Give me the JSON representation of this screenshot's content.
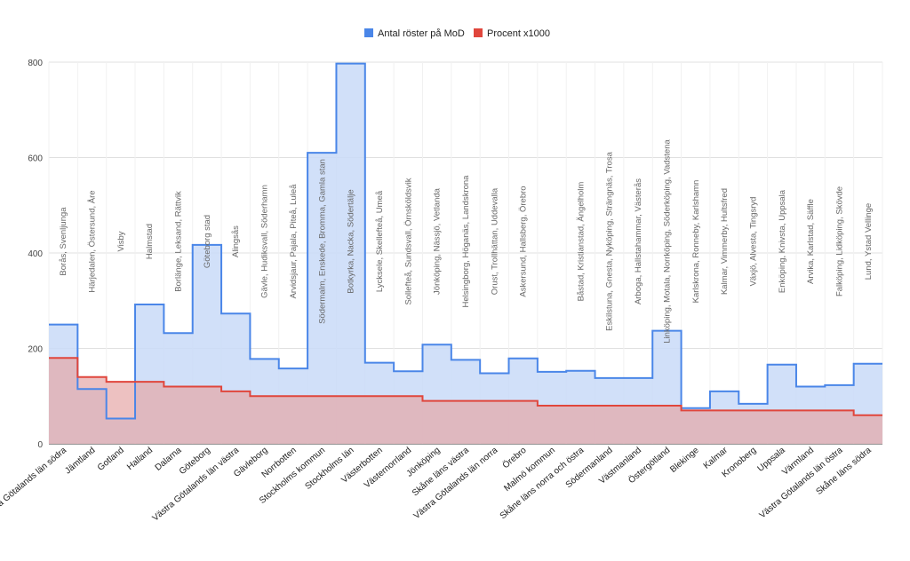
{
  "chart_data": {
    "type": "area",
    "step": true,
    "ylim": [
      0,
      800
    ],
    "yticks": [
      0,
      200,
      400,
      600,
      800
    ],
    "grid": true,
    "legend_position": "top-center",
    "colors": {
      "votes": "#4a86e8",
      "votes_fill": "#c9daf8",
      "percent": "#e0463c",
      "percent_fill": "#e6a6a6",
      "grid": "#e0e0e0",
      "axis": "#333333"
    },
    "series": [
      {
        "name": "Antal röster på MoD",
        "values": [
          250,
          115,
          53,
          292,
          232,
          417,
          273,
          178,
          158,
          610,
          797,
          170,
          152,
          208,
          176,
          148,
          179,
          151,
          153,
          138,
          138,
          237,
          75,
          110,
          84,
          166,
          120,
          123,
          168
        ]
      },
      {
        "name": "Procent x1000",
        "values": [
          180,
          140,
          130,
          130,
          120,
          120,
          110,
          100,
          100,
          100,
          100,
          100,
          100,
          90,
          90,
          90,
          90,
          80,
          80,
          80,
          80,
          80,
          70,
          70,
          70,
          70,
          70,
          70,
          60
        ]
      }
    ],
    "categories": [
      "Västra Götalands län södra",
      "Jämtland",
      "Gotland",
      "Halland",
      "Dalarna",
      "Göteborg",
      "Västra Götalands län västra",
      "Gävleborg",
      "Norrbotten",
      "Stockholms kommun",
      "Stockholms län",
      "Västerbotten",
      "Västernorrland",
      "Jönköping",
      "Skåne läns västra",
      "Västra Götalands län norra",
      "Örebro",
      "Malmö kommun",
      "Skåne läns norra och östra",
      "Södermanland",
      "Västmanland",
      "Östergötland",
      "Blekinge",
      "Kalmar",
      "Kronoberg",
      "Uppsala",
      "Värmland",
      "Västra Götalands län östra",
      "Skåne läns södra"
    ],
    "annotations": [
      "Borås, Svenljunga",
      "Härjedalen, Östersund, Åre",
      "Visby",
      "Halmstad",
      "Borlänge, Leksand, Rättvik",
      "Göteborg stad",
      "Alingsås",
      "Gävle, Hudiksvall, Söderhamn",
      "Arvidsjaur, Pajala, Piteå, Luleå",
      "Södermalm, Enskede, Bromma, Gamla stan",
      "Botkyrka, Nacka, Södertälje",
      "Lycksele, Skellefteå, Umeå",
      "Sollefteå, Sundsvall, Örnsköldsvik",
      "Jönköping, Nässjö, Vetlanda",
      "Helsingborg, Höganäs, Landskrona",
      "Orust, Trollhättan, Uddevalla",
      "Askersund, Hallsberg, Örebro",
      "",
      "Båstad, Kristianstad, Ängelholm",
      "Eskilstuna, Gnesta, Nyköping, Strängnäs, Trosa",
      "Arboga, Hallstahammar, Västerås",
      "Linköping, Motala, Norrköping, Söderköping, Vadstena",
      "Karlskrona, Ronneby, Karlshamn",
      "Kalmar, Vimmerby, Hultsfred",
      "Växjö, Alvesta, Tingsryd",
      "Enköping, Knivsta, Uppsala",
      "Arvika, Karlstad, Säffle",
      "Falköping, Lidköping, Skövde",
      "Lund, Ystad Vellinge"
    ]
  }
}
